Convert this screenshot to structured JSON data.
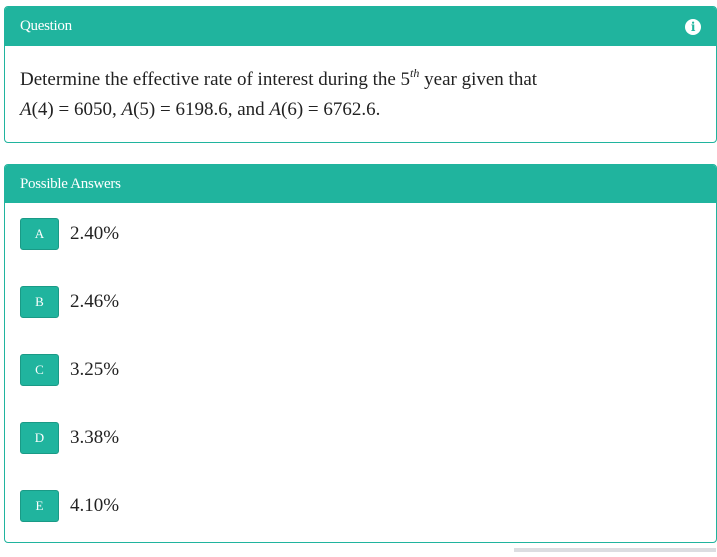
{
  "question": {
    "header": "Question",
    "icon": "info-icon",
    "text1": "Determine the effective rate of interest during the ",
    "ord_num": "5",
    "ord_sup": "th",
    "text2": " year given that",
    "line2": [
      {
        "m": "A"
      },
      {
        "t": "(4) = 6050, "
      },
      {
        "m": "A"
      },
      {
        "t": "(5) = 6198.6, and "
      },
      {
        "m": "A"
      },
      {
        "t": "(6) = 6762.6."
      }
    ]
  },
  "answers": {
    "header": "Possible Answers",
    "items": [
      {
        "letter": "A",
        "value": "2.40%"
      },
      {
        "letter": "B",
        "value": "2.46%"
      },
      {
        "letter": "C",
        "value": "3.25%"
      },
      {
        "letter": "D",
        "value": "3.38%"
      },
      {
        "letter": "E",
        "value": "4.10%"
      }
    ]
  },
  "colors": {
    "accent": "#20b49e"
  }
}
